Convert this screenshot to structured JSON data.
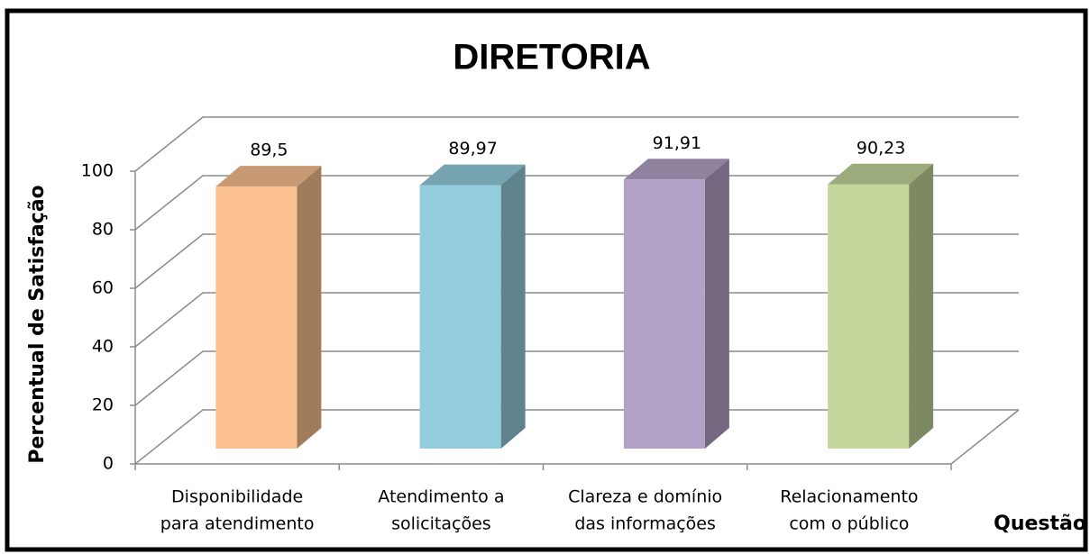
{
  "chart_data": {
    "type": "bar3d",
    "title": "DIRETORIA",
    "y_label": "Percentual de Satisfação",
    "x_label": "Questão",
    "categories": [
      [
        "Disponibilidade",
        "para atendimento"
      ],
      [
        "Atendimento a",
        "solicitações"
      ],
      [
        "Clareza e domínio",
        "das informações"
      ],
      [
        "Relacionamento",
        "com o público"
      ]
    ],
    "values": [
      89.5,
      89.97,
      91.91,
      90.23
    ],
    "value_labels": [
      "89,5",
      "89,97",
      "91,91",
      "90,23"
    ],
    "colors": [
      "#fac090",
      "#93cddd",
      "#b3a2c7",
      "#c3d69b"
    ],
    "ylim": [
      0,
      100
    ],
    "yticks": [
      0,
      20,
      40,
      60,
      80,
      100
    ],
    "grid": true
  }
}
